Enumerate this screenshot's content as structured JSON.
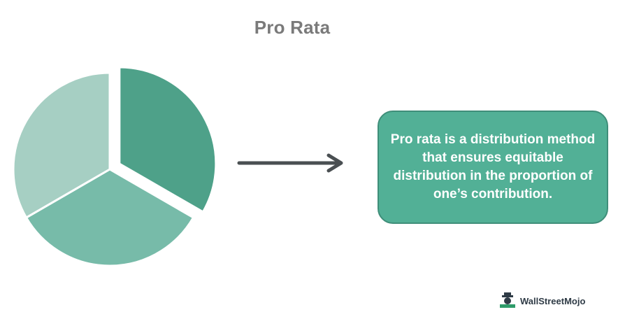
{
  "title": "Pro Rata",
  "callout_text": "Pro rata is a distribution method that ensures equitable distribution in the proportion of one’s contribution.",
  "brand": "WallStreetMojo",
  "arrow_icon": "right-arrow-icon",
  "logo_icon": "wallstreetmojo-logo-icon",
  "colors": {
    "title": "#7a7a7a",
    "callout_fill": "#52b096",
    "callout_border": "#3f8e79",
    "arrow": "#4a4f52",
    "slices": [
      "#4ea189",
      "#77bba9",
      "#a6cfc3"
    ]
  },
  "pie": {
    "slices": [
      {
        "share": 0.3333,
        "exploded": true
      },
      {
        "share": 0.3333,
        "exploded": false
      },
      {
        "share": 0.3334,
        "exploded": false
      }
    ]
  }
}
